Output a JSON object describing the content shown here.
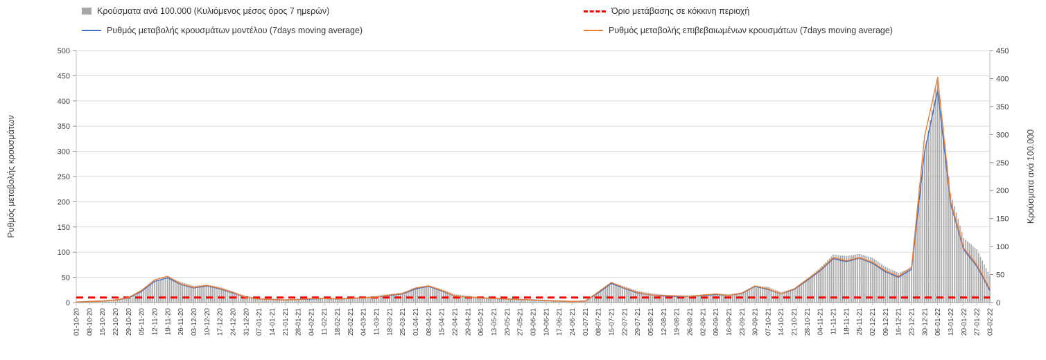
{
  "chart_data": {
    "type": "bar",
    "title": "",
    "x_tick_labels": [
      "01-10-20",
      "08-10-20",
      "15-10-20",
      "22-10-20",
      "29-10-20",
      "05-11-20",
      "12-11-20",
      "19-11-20",
      "26-11-20",
      "03-12-20",
      "10-12-20",
      "17-12-20",
      "24-12-20",
      "31-12-20",
      "07-01-21",
      "14-01-21",
      "21-01-21",
      "28-01-21",
      "04-02-21",
      "11-02-21",
      "18-02-21",
      "25-02-21",
      "04-03-21",
      "11-03-21",
      "18-03-21",
      "25-03-21",
      "01-04-21",
      "08-04-21",
      "15-04-21",
      "22-04-21",
      "29-04-21",
      "06-05-21",
      "13-05-21",
      "20-05-21",
      "27-05-21",
      "03-06-21",
      "10-06-21",
      "17-06-21",
      "24-06-21",
      "01-07-21",
      "08-07-21",
      "15-07-21",
      "22-07-21",
      "29-07-21",
      "05-08-21",
      "12-08-21",
      "19-08-21",
      "26-08-21",
      "02-09-21",
      "09-09-21",
      "16-09-21",
      "23-09-21",
      "30-09-21",
      "07-10-21",
      "14-10-21",
      "21-10-21",
      "28-10-21",
      "04-11-21",
      "11-11-21",
      "18-11-21",
      "25-11-21",
      "02-12-21",
      "09-12-21",
      "16-12-21",
      "23-12-21",
      "30-12-21",
      "06-01-22",
      "13-01-22",
      "20-01-22",
      "27-01-22",
      "03-02-22"
    ],
    "left_axis": {
      "label": "Ρυθμός μεταβολής κρουσμάτων",
      "min": 0,
      "max": 500,
      "step": 50
    },
    "right_axis": {
      "label": "Κρούσματα ανά 100.000",
      "min": 0,
      "max": 450,
      "step": 50
    },
    "grid": true,
    "legend_position": "top",
    "series": [
      {
        "name": "Κρούσματα ανά 100.000 (Κυλιόμενος μέσος όρος 7 ημερών)",
        "type": "bar",
        "axis": "right",
        "color": "#a6a6a6",
        "values": [
          2,
          3,
          4,
          6,
          10,
          20,
          38,
          46,
          37,
          30,
          32,
          28,
          20,
          12,
          8,
          7,
          6,
          7,
          8,
          9,
          8,
          9,
          10,
          12,
          15,
          18,
          26,
          31,
          24,
          15,
          12,
          10,
          9,
          8,
          7,
          6,
          5,
          4,
          3,
          3,
          16,
          36,
          29,
          21,
          17,
          14,
          13,
          13,
          14,
          16,
          15,
          18,
          30,
          28,
          19,
          25,
          42,
          62,
          86,
          83,
          87,
          80,
          64,
          53,
          62,
          270,
          400,
          195,
          115,
          95,
          48
        ]
      },
      {
        "name": "Ρυθμός μεταβολής κρουσμάτων μοντέλου (7days moving average)",
        "type": "line",
        "axis": "left",
        "color": "#4472c4",
        "values": [
          1,
          2,
          3,
          5,
          9,
          22,
          42,
          49,
          36,
          29,
          33,
          27,
          19,
          10,
          7,
          6,
          5,
          6,
          7,
          8,
          7,
          8,
          9,
          11,
          14,
          17,
          27,
          32,
          23,
          13,
          11,
          9,
          8,
          7,
          6,
          5,
          4,
          3,
          2,
          3,
          19,
          38,
          28,
          19,
          15,
          13,
          12,
          12,
          14,
          16,
          14,
          18,
          32,
          26,
          17,
          26,
          44,
          63,
          87,
          81,
          88,
          78,
          61,
          50,
          66,
          300,
          420,
          195,
          105,
          72,
          24
        ]
      },
      {
        "name": "Ρυθμός μεταβολής επιβεβαιωμένων κρουσμάτων (7days moving average)",
        "type": "line",
        "axis": "left",
        "color": "#ed7d31",
        "values": [
          1,
          2,
          3,
          5,
          10,
          24,
          45,
          52,
          37,
          30,
          34,
          28,
          20,
          10,
          7,
          6,
          5,
          6,
          8,
          8,
          7,
          8,
          9,
          11,
          15,
          18,
          29,
          33,
          24,
          13,
          11,
          9,
          8,
          7,
          6,
          5,
          4,
          3,
          2,
          3,
          21,
          40,
          29,
          20,
          15,
          14,
          13,
          12,
          15,
          17,
          14,
          19,
          33,
          27,
          17,
          27,
          46,
          65,
          89,
          83,
          89,
          80,
          63,
          52,
          70,
          330,
          447,
          200,
          108,
          75,
          27
        ]
      },
      {
        "name": "Όριο μετάβασης σε κόκκινη περιοχή",
        "type": "threshold",
        "axis": "left",
        "color": "#ff0000",
        "value": 10
      }
    ]
  }
}
